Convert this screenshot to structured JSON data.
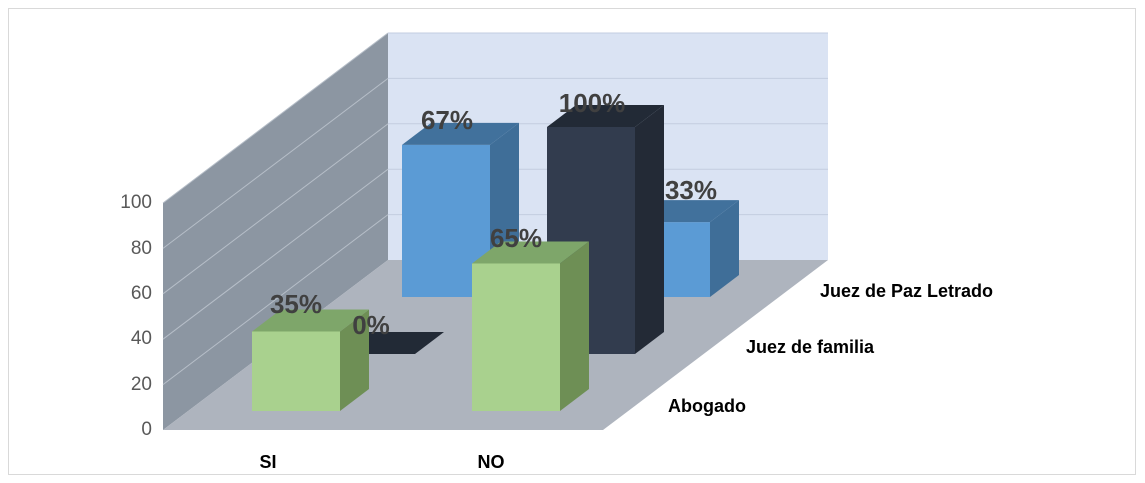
{
  "chart_data": {
    "type": "bar",
    "categories": [
      "SI",
      "NO"
    ],
    "series": [
      {
        "name": "Abogado",
        "values": [
          35,
          65
        ],
        "labels": [
          "35%",
          "65%"
        ]
      },
      {
        "name": "Juez de familia",
        "values": [
          0,
          100
        ],
        "labels": [
          "0%",
          "100%"
        ]
      },
      {
        "name": "Juez de Paz Letrado",
        "values": [
          67,
          33
        ],
        "labels": [
          "67%",
          "33%"
        ]
      }
    ],
    "yticks": [
      "0",
      "20",
      "40",
      "60",
      "80",
      "100"
    ],
    "ylim": [
      0,
      100
    ],
    "grid": true,
    "colors": {
      "Abogado": {
        "front": "#a9d18e",
        "top": "#7ea66a",
        "side": "#6e8f55"
      },
      "Juez de familia": {
        "front": "#323c4e",
        "top": "#222a36",
        "side": "#232a36"
      },
      "Juez de Paz Letrado": {
        "front": "#5b9bd5",
        "top": "#41719c",
        "side": "#3f6e98"
      },
      "back_wall": "#dae3f3",
      "side_wall": "#8c96a2",
      "floor": "#aeb4be"
    }
  }
}
